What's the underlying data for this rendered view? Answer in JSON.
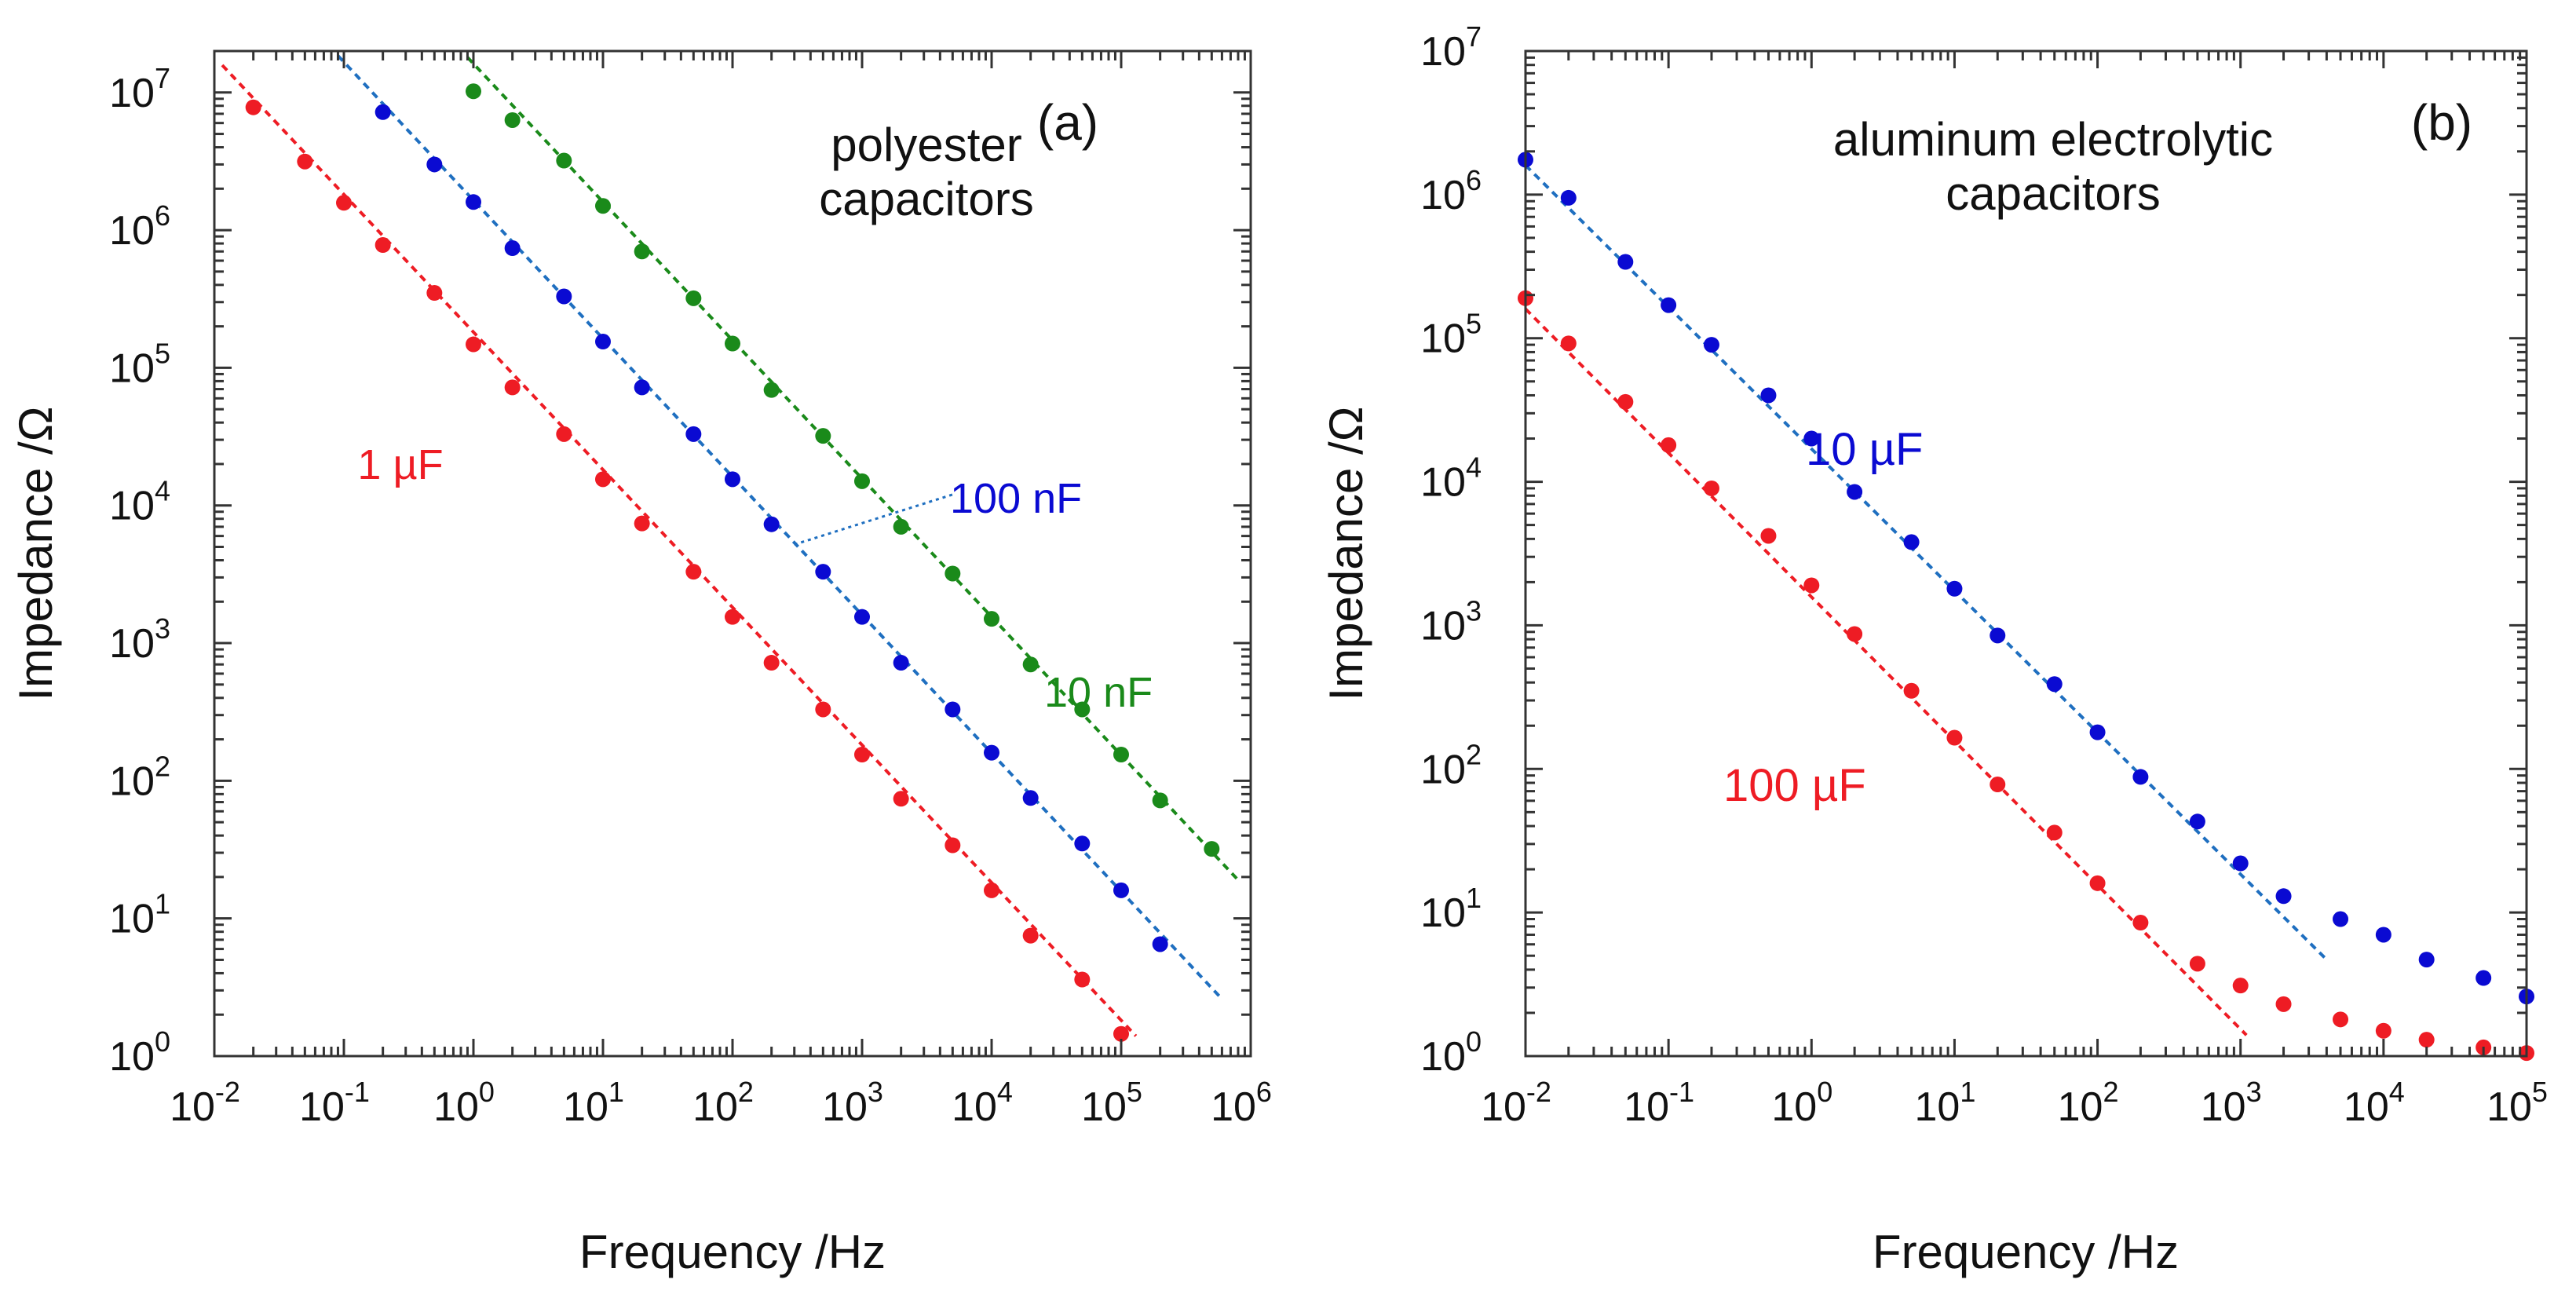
{
  "chart_data": [
    {
      "type": "scatter",
      "panel_label": "(a)",
      "title": "polyester\ncapacitors",
      "xlabel": "Frequency /Hz",
      "ylabel": "Impedance /Ω",
      "xscale": "log",
      "yscale": "log",
      "xlim": [
        0.01,
        1000000
      ],
      "ylim": [
        1,
        20000000
      ],
      "xticks": [
        {
          "exp": -2,
          "label_base": "10",
          "label_exp": "-2"
        },
        {
          "exp": -1,
          "label_base": "10",
          "label_exp": "-1"
        },
        {
          "exp": 0,
          "label_base": "10",
          "label_exp": "0"
        },
        {
          "exp": 1,
          "label_base": "10",
          "label_exp": "1"
        },
        {
          "exp": 2,
          "label_base": "10",
          "label_exp": "2"
        },
        {
          "exp": 3,
          "label_base": "10",
          "label_exp": "3"
        },
        {
          "exp": 4,
          "label_base": "10",
          "label_exp": "4"
        },
        {
          "exp": 5,
          "label_base": "10",
          "label_exp": "5"
        },
        {
          "exp": 6,
          "label_base": "10",
          "label_exp": "6"
        }
      ],
      "yticks": [
        {
          "exp": 0,
          "label_base": "10",
          "label_exp": "0"
        },
        {
          "exp": 1,
          "label_base": "10",
          "label_exp": "1"
        },
        {
          "exp": 2,
          "label_base": "10",
          "label_exp": "2"
        },
        {
          "exp": 3,
          "label_base": "10",
          "label_exp": "3"
        },
        {
          "exp": 4,
          "label_base": "10",
          "label_exp": "4"
        },
        {
          "exp": 5,
          "label_base": "10",
          "label_exp": "5"
        },
        {
          "exp": 6,
          "label_base": "10",
          "label_exp": "6"
        },
        {
          "exp": 7,
          "label_base": "10",
          "label_exp": "7"
        }
      ],
      "series": [
        {
          "name": "1 µF",
          "color": "#ee1c24",
          "fit_color": "#ee1c24",
          "x": [
            0.02,
            0.05,
            0.1,
            0.2,
            0.5,
            1,
            2,
            5,
            10,
            20,
            50,
            100,
            200,
            500,
            1000,
            2000,
            5000,
            10000,
            20000,
            50000,
            100000
          ],
          "y": [
            7800000,
            3150000,
            1580000,
            780000,
            350000,
            148000,
            72000,
            33000,
            15500,
            7400,
            3300,
            1550,
            720,
            330,
            155,
            74,
            34,
            16,
            7.5,
            3.6,
            1.45
          ],
          "fit": {
            "x": [
              0.0115,
              130000
            ],
            "y": [
              15800000,
              1.4
            ]
          }
        },
        {
          "name": "100 nF",
          "color": "#0a0ad2",
          "fit_color": "#1f6fc0",
          "x": [
            0.2,
            0.5,
            1,
            2,
            5,
            10,
            20,
            50,
            100,
            200,
            500,
            1000,
            2000,
            5000,
            10000,
            20000,
            50000,
            100000,
            200000
          ],
          "y": [
            7200000,
            3000000,
            1600000,
            740000,
            330000,
            155000,
            72000,
            33000,
            15500,
            7300,
            3300,
            1550,
            720,
            330,
            160,
            75,
            35,
            16,
            6.5
          ],
          "fit": {
            "x": [
              0.09,
              600000
            ],
            "y": [
              18500000,
              2.6
            ]
          },
          "leader": {
            "from": {
              "x": 300,
              "y": 5200
            },
            "to": {
              "x": 5000,
              "y": 12000
            }
          }
        },
        {
          "name": "10 nF",
          "color": "#1a8a1a",
          "fit_color": "#1a8a1a",
          "x": [
            1,
            2,
            5,
            10,
            20,
            50,
            100,
            200,
            500,
            1000,
            2000,
            5000,
            10000,
            20000,
            50000,
            100000,
            200000,
            500000
          ],
          "y": [
            10200000,
            6300000,
            3200000,
            1500000,
            700000,
            320000,
            150000,
            69000,
            32000,
            15000,
            7000,
            3200,
            1500,
            700,
            330,
            155,
            72,
            32
          ],
          "fit": {
            "x": [
              0.9,
              800000
            ],
            "y": [
              18000000,
              19
            ]
          }
        }
      ],
      "annotations": [
        {
          "text": "1 µF",
          "series": "1 µF"
        },
        {
          "text": "100 nF",
          "series": "100 nF"
        },
        {
          "text": "10 nF",
          "series": "10 nF"
        }
      ]
    },
    {
      "type": "scatter",
      "panel_label": "(b)",
      "title": "aluminum electrolytic\ncapacitors",
      "xlabel": "Frequency /Hz",
      "ylabel": "Impedance /Ω",
      "xscale": "log",
      "yscale": "log",
      "xlim": [
        0.01,
        100000
      ],
      "ylim": [
        1,
        10000000
      ],
      "xticks": [
        {
          "exp": -2,
          "label_base": "10",
          "label_exp": "-2"
        },
        {
          "exp": -1,
          "label_base": "10",
          "label_exp": "-1"
        },
        {
          "exp": 0,
          "label_base": "10",
          "label_exp": "0"
        },
        {
          "exp": 1,
          "label_base": "10",
          "label_exp": "1"
        },
        {
          "exp": 2,
          "label_base": "10",
          "label_exp": "2"
        },
        {
          "exp": 3,
          "label_base": "10",
          "label_exp": "3"
        },
        {
          "exp": 4,
          "label_base": "10",
          "label_exp": "4"
        },
        {
          "exp": 5,
          "label_base": "10",
          "label_exp": "5"
        }
      ],
      "yticks": [
        {
          "exp": 0,
          "label_base": "10",
          "label_exp": "0"
        },
        {
          "exp": 1,
          "label_base": "10",
          "label_exp": "1"
        },
        {
          "exp": 2,
          "label_base": "10",
          "label_exp": "2"
        },
        {
          "exp": 3,
          "label_base": "10",
          "label_exp": "3"
        },
        {
          "exp": 4,
          "label_base": "10",
          "label_exp": "4"
        },
        {
          "exp": 5,
          "label_base": "10",
          "label_exp": "5"
        },
        {
          "exp": 6,
          "label_base": "10",
          "label_exp": "6"
        },
        {
          "exp": 7,
          "label_base": "10",
          "label_exp": "7"
        }
      ],
      "series": [
        {
          "name": "10 µF",
          "color": "#0a0ad2",
          "fit_color": "#1f6fc0",
          "x": [
            0.01,
            0.02,
            0.05,
            0.1,
            0.2,
            0.5,
            1,
            2,
            5,
            10,
            20,
            50,
            100,
            200,
            500,
            1000,
            2000,
            5000,
            10000,
            20000,
            50000,
            100000
          ],
          "y": [
            1750000,
            950000,
            340000,
            170000,
            90000,
            40000,
            20000,
            8500,
            3800,
            1800,
            850,
            390,
            180,
            88,
            43,
            22,
            13,
            9,
            7,
            4.7,
            3.5,
            2.6
          ],
          "fit": {
            "x": [
              0.01,
              4000
            ],
            "y": [
              1600000,
              4.7
            ]
          }
        },
        {
          "name": "100 µF",
          "color": "#ee1c24",
          "fit_color": "#ee1c24",
          "x": [
            0.01,
            0.02,
            0.05,
            0.1,
            0.2,
            0.5,
            1,
            2,
            5,
            10,
            20,
            50,
            100,
            200,
            500,
            1000,
            2000,
            5000,
            10000,
            20000,
            50000,
            100000
          ],
          "y": [
            190000,
            92000,
            36000,
            18000,
            9000,
            4200,
            1900,
            870,
            350,
            165,
            78,
            36,
            16,
            8.5,
            4.4,
            3.1,
            2.3,
            1.8,
            1.5,
            1.3,
            1.15,
            1.05
          ],
          "fit": {
            "x": [
              0.01,
              1100
            ],
            "y": [
              160000,
              1.4
            ]
          }
        }
      ],
      "annotations": [
        {
          "text": "10 µF",
          "series": "10 µF"
        },
        {
          "text": "100 µF",
          "series": "100 µF"
        }
      ]
    }
  ]
}
